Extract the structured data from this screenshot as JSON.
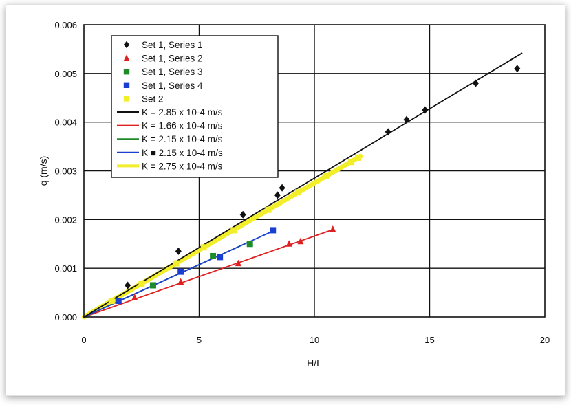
{
  "chart_data": {
    "type": "scatter",
    "xlabel": "H/L",
    "ylabel": "q (m/s)",
    "xlim": [
      0,
      20
    ],
    "ylim": [
      0,
      0.006
    ],
    "xticks": [
      "0",
      "5",
      "10",
      "15",
      "20"
    ],
    "yticks": [
      "0.000",
      "0.001",
      "0.002",
      "0.003",
      "0.004",
      "0.005",
      "0.006"
    ],
    "grid": true,
    "legend_position": "top-left",
    "series": [
      {
        "name": "Set 1, Series 1",
        "marker": "diamond",
        "color": "#111111",
        "x": [
          1.9,
          4.1,
          6.9,
          8.4,
          8.6,
          13.2,
          14.0,
          14.8,
          17.0,
          18.8
        ],
        "y": [
          0.00065,
          0.00135,
          0.0021,
          0.0025,
          0.00265,
          0.0038,
          0.00405,
          0.00425,
          0.0048,
          0.0051
        ]
      },
      {
        "name": "Set 1, Series 2",
        "marker": "triangle",
        "color": "#e02020",
        "x": [
          2.2,
          4.2,
          6.7,
          8.9,
          9.4,
          10.8
        ],
        "y": [
          0.0004,
          0.00072,
          0.0011,
          0.0015,
          0.00155,
          0.0018
        ]
      },
      {
        "name": "Set 1, Series 3",
        "marker": "square",
        "color": "#1e8a2a",
        "x": [
          3.0,
          5.6,
          7.2
        ],
        "y": [
          0.00065,
          0.00125,
          0.0015
        ]
      },
      {
        "name": "Set 1, Series 4",
        "marker": "square",
        "color": "#1a3fd0",
        "x": [
          1.5,
          4.2,
          5.9,
          8.2
        ],
        "y": [
          0.00033,
          0.00093,
          0.00123,
          0.00178
        ]
      },
      {
        "name": "Set 2",
        "marker": "square",
        "color": "#f2ee2a",
        "x": [
          1.2,
          2.5,
          4.0,
          5.2,
          6.5,
          8.0,
          9.3,
          10.5,
          11.6,
          11.9
        ],
        "y": [
          0.00033,
          0.00068,
          0.0011,
          0.00143,
          0.00178,
          0.0022,
          0.00256,
          0.00289,
          0.00318,
          0.00327
        ]
      }
    ],
    "fits": [
      {
        "label": "K = 2.85 x 10-4 m/s",
        "color": "#111111",
        "x_end": 19.0
      },
      {
        "label": "K = 1.66 x 10-4 m/s",
        "color": "#e02020",
        "x_end": 10.8
      },
      {
        "label": "K = 2.15 x 10-4 m/s",
        "color": "#1e8a2a",
        "x_end": 7.2
      },
      {
        "label": "K ■ 2.15 x 10-4 m/s",
        "color": "#1a3fd0",
        "x_end": 8.2
      },
      {
        "label": "K = 2.75 x 10-4 m/s",
        "color": "#f2ee2a",
        "x_end": 12.0
      }
    ],
    "fit_slopes": [
      0.000285,
      0.000166,
      0.000215,
      0.000215,
      0.000275
    ]
  }
}
